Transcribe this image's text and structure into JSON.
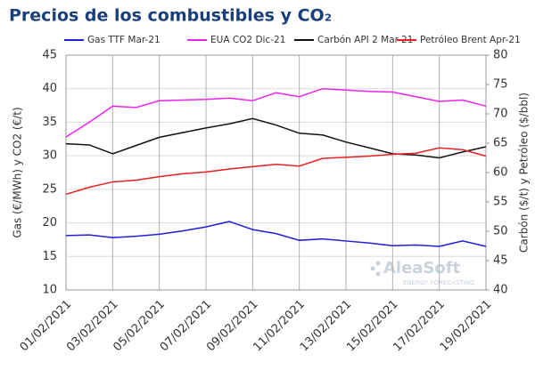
{
  "chart_data": {
    "type": "line",
    "title": "Precios de los combustibles y CO₂",
    "y_label": "Gas (€/MWh) y CO2 (€/t)",
    "y2_label": "Carbón ($/t) y Petróleo ($/bbl)",
    "watermark": "AleaSoft",
    "watermark_sub": "ENERGY FORECASTING",
    "categories": [
      "01/02/2021",
      null,
      "03/02/2021",
      null,
      "05/02/2021",
      null,
      "07/02/2021",
      null,
      "09/02/2021",
      null,
      "11/02/2021",
      null,
      "13/02/2021",
      null,
      "15/02/2021",
      null,
      "17/02/2021",
      null,
      "19/02/2021"
    ],
    "ylim": [
      10,
      45
    ],
    "yticks": [
      10,
      15,
      20,
      25,
      30,
      35,
      40,
      45
    ],
    "y2lim": [
      40,
      80
    ],
    "y2ticks": [
      40,
      45,
      50,
      55,
      60,
      65,
      70,
      75,
      80
    ],
    "grid": true,
    "legend": "top",
    "series": [
      {
        "name": "Gas TTF Mar-21",
        "color": "#1f1fdc",
        "values": [
          18.1,
          18.2,
          17.8,
          18.0,
          18.3,
          18.8,
          19.4,
          20.2,
          19.0,
          18.4,
          17.4,
          17.6,
          17.3,
          17.0,
          16.6,
          16.7,
          16.5,
          17.3,
          16.5
        ]
      },
      {
        "name": "EUA CO2 Dic-21",
        "color": "#ee22ee",
        "values": [
          32.8,
          35.0,
          37.4,
          37.2,
          38.2,
          38.3,
          38.4,
          38.6,
          38.2,
          39.4,
          38.8,
          40.0,
          39.8,
          39.6,
          39.5,
          38.8,
          38.1,
          38.3,
          37.4
        ]
      },
      {
        "name": "Carbón API 2 Mar-21",
        "color": "#111111",
        "axis": "y2",
        "values": [
          64.9,
          64.7,
          63.2,
          64.6,
          66.0,
          66.8,
          67.6,
          68.3,
          69.2,
          68.1,
          66.7,
          66.4,
          65.2,
          64.2,
          63.2,
          63.0,
          62.5,
          63.5,
          64.4
        ]
      },
      {
        "name": "Petróleo Brent Apr-21",
        "color": "#e82020",
        "axis": "y2",
        "values": [
          56.3,
          57.5,
          58.4,
          58.7,
          59.3,
          59.8,
          60.1,
          60.6,
          61.0,
          61.4,
          61.1,
          62.4,
          62.6,
          62.8,
          63.1,
          63.3,
          64.2,
          63.9,
          62.8
        ]
      }
    ]
  }
}
